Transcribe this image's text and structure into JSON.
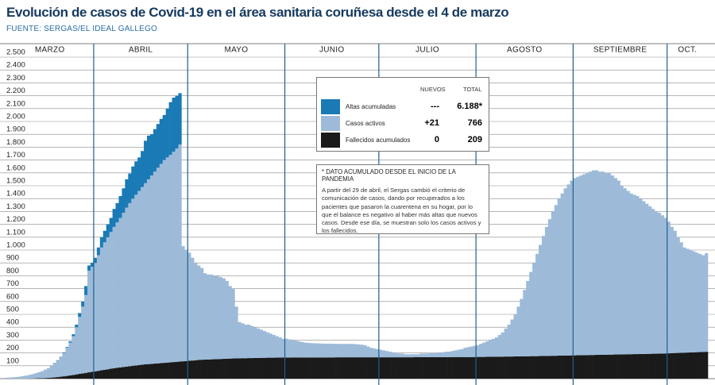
{
  "chart_data": {
    "type": "stacked_bar",
    "title": "Evolución de casos de Covid-19 en el área sanitaria coruñesa desde el 4 de marzo",
    "source": "FUENTE: SERGAS/EL IDEAL GALLEGO",
    "months": [
      "MARZO",
      "ABRIL",
      "MAYO",
      "JUNIO",
      "JULIO",
      "AGOSTO",
      "SEPTIEMBRE",
      "OCT."
    ],
    "ylim": [
      0,
      2500
    ],
    "yticks": [
      100,
      200,
      300,
      400,
      500,
      600,
      700,
      800,
      900,
      {
        "value": 1000,
        "label": "1.000"
      },
      {
        "value": 1100,
        "label": "1.100"
      },
      {
        "value": 1200,
        "label": "1.200"
      },
      {
        "value": 1300,
        "label": "1.300"
      },
      {
        "value": 1400,
        "label": "1.400"
      },
      {
        "value": 1500,
        "label": "1.500"
      },
      {
        "value": 1600,
        "label": "1.600"
      },
      {
        "value": 1700,
        "label": "1.700"
      },
      {
        "value": 1800,
        "label": "1.800"
      },
      {
        "value": 1900,
        "label": "1.900"
      },
      {
        "value": 2000,
        "label": "2.000"
      },
      {
        "value": 2100,
        "label": "2.100"
      },
      {
        "value": 2200,
        "label": "2.200"
      },
      {
        "value": 2300,
        "label": "2.300"
      },
      {
        "value": 2400,
        "label": "2.400"
      },
      {
        "value": 2500,
        "label": "2.500"
      }
    ],
    "grid": true,
    "legend": {
      "headers": [
        "NUEVOS",
        "TOTAL"
      ],
      "rows": [
        [
          "---",
          "6.188*"
        ],
        [
          "+21",
          "766"
        ],
        [
          "0",
          "209"
        ]
      ]
    },
    "note": {
      "title": "* DATO ACUMULADO DESDE EL INICIO DE LA PANDEMIA",
      "text": "A partir del 29 de abril, el Sergas cambió el criterio de comunicación de casos, dando por recuperados a los pacientes que pasaron la cuarentena en su hogar, por lo que el balance es negativo al haber más altas que nuevos casos. Desde ese día, se muestran solo los casos activos y los fallecidos."
    },
    "series": [
      {
        "name": "Altas acumuladas",
        "color": "#1a7ab5",
        "values": [
          0,
          0,
          0,
          0,
          0,
          0,
          0,
          0,
          0,
          0,
          0,
          0,
          1,
          1,
          2,
          2,
          3,
          4,
          5,
          6,
          10,
          15,
          20,
          30,
          40,
          70,
          40,
          30,
          40,
          60,
          80,
          90,
          100,
          110,
          140,
          150,
          170,
          190,
          220,
          230,
          250,
          260,
          260,
          280,
          330,
          340,
          320,
          330,
          340,
          350,
          350,
          380,
          410,
          420,
          410,
          400,
          null,
          null,
          null,
          null,
          null,
          null,
          null,
          null,
          null,
          null,
          null,
          null,
          null,
          null,
          null,
          null,
          null,
          null,
          null,
          null,
          null,
          null,
          null,
          null,
          null,
          null,
          null,
          null,
          null,
          null,
          null,
          null,
          null,
          null,
          null,
          null,
          null,
          null,
          null,
          null,
          null,
          null,
          null,
          null,
          null,
          null,
          null,
          null,
          null,
          null,
          null,
          null,
          null,
          null,
          null,
          null,
          null,
          null,
          null,
          null,
          null,
          null,
          null,
          null,
          null,
          null,
          null,
          null,
          null,
          null,
          null,
          null,
          null,
          null,
          null,
          null,
          null,
          null,
          null,
          null,
          null,
          null,
          null,
          null,
          null,
          null,
          null,
          null,
          null,
          null,
          null,
          null,
          null,
          null,
          null,
          null,
          null,
          null,
          null,
          null,
          null,
          null,
          null,
          null,
          null,
          null,
          null,
          null,
          null,
          null,
          null,
          null,
          null,
          null,
          null,
          null,
          null,
          null,
          null,
          null,
          null,
          null,
          null,
          null,
          null,
          null,
          null,
          null,
          null,
          null,
          null,
          null,
          null,
          null,
          null,
          null,
          null,
          null,
          null,
          null,
          null,
          null,
          null,
          null,
          null,
          null,
          null,
          null,
          null,
          null,
          null,
          null,
          null,
          null,
          null,
          null,
          null,
          null,
          null,
          null,
          null,
          null,
          null,
          null,
          null,
          null,
          null,
          null
        ]
      },
      {
        "name": "Casos activos",
        "color": "#9dbbd9",
        "values": [
          8,
          9,
          11,
          13,
          16,
          20,
          24,
          28,
          34,
          40,
          47,
          54,
          63,
          74,
          87,
          110,
          128,
          150,
          182,
          219,
          255,
          301,
          367,
          443,
          519,
          605,
          791,
          817,
          843,
          899,
          955,
          991,
          1027,
          1063,
          1099,
          1130,
          1162,
          1199,
          1236,
          1268,
          1300,
          1327,
          1354,
          1381,
          1409,
          1437,
          1465,
          1493,
          1521,
          1549,
          1577,
          1595,
          1613,
          1636,
          1659,
          1687,
          895,
          863,
          841,
          799,
          757,
          735,
          713,
          672,
          661,
          660,
          649,
          648,
          637,
          626,
          605,
          564,
          543,
          402,
          282,
          271,
          261,
          260,
          250,
          239,
          229,
          218,
          208,
          197,
          187,
          177,
          166,
          156,
          146,
          146,
          141,
          135,
          130,
          125,
          120,
          115,
          113,
          111,
          110,
          109,
          108,
          107,
          107,
          107,
          106,
          105,
          104,
          104,
          104,
          104,
          104,
          102,
          100,
          98,
          94,
          84,
          74,
          69,
          64,
          59,
          54,
          49,
          44,
          39,
          34,
          29,
          29,
          24,
          24,
          24,
          23,
          23,
          28,
          28,
          28,
          33,
          33,
          33,
          38,
          38,
          43,
          43,
          47,
          52,
          57,
          62,
          72,
          77,
          82,
          87,
          91,
          101,
          111,
          120,
          130,
          140,
          149,
          169,
          189,
          218,
          248,
          288,
          327,
          387,
          447,
          516,
          586,
          655,
          725,
          795,
          864,
          934,
          1003,
          1063,
          1122,
          1172,
          1221,
          1261,
          1300,
          1330,
          1359,
          1379,
          1388,
          1398,
          1407,
          1417,
          1426,
          1436,
          1435,
          1425,
          1424,
          1414,
          1413,
          1393,
          1372,
          1352,
          1311,
          1291,
          1270,
          1250,
          1239,
          1229,
          1208,
          1188,
          1167,
          1147,
          1126,
          1106,
          1095,
          1075,
          1054,
          1023,
          982,
          951,
          900,
          859,
          818,
          807,
          796,
          785,
          774,
          763,
          752,
          766
        ]
      },
      {
        "name": "Fallecidos acumulados",
        "color": "#1a1a1a",
        "values": [
          0,
          0,
          0,
          0,
          0,
          0,
          0,
          1,
          1,
          2,
          3,
          4,
          5,
          6,
          8,
          10,
          12,
          15,
          18,
          21,
          25,
          29,
          33,
          37,
          41,
          45,
          49,
          53,
          57,
          61,
          65,
          69,
          73,
          77,
          81,
          85,
          88,
          91,
          94,
          97,
          100,
          103,
          106,
          109,
          111,
          113,
          115,
          117,
          119,
          121,
          123,
          125,
          127,
          129,
          131,
          133,
          135,
          137,
          139,
          141,
          143,
          145,
          147,
          148,
          149,
          150,
          151,
          152,
          153,
          154,
          155,
          156,
          157,
          158,
          158,
          159,
          159,
          160,
          160,
          161,
          161,
          162,
          162,
          163,
          163,
          163,
          164,
          164,
          164,
          164,
          164,
          165,
          165,
          165,
          165,
          165,
          165,
          165,
          165,
          165,
          165,
          165,
          165,
          165,
          165,
          166,
          166,
          166,
          166,
          166,
          166,
          166,
          166,
          166,
          166,
          166,
          166,
          166,
          166,
          166,
          166,
          166,
          166,
          166,
          166,
          166,
          166,
          166,
          166,
          166,
          167,
          167,
          167,
          167,
          167,
          167,
          167,
          167,
          167,
          167,
          167,
          167,
          168,
          168,
          168,
          168,
          168,
          168,
          168,
          168,
          169,
          169,
          169,
          170,
          170,
          170,
          171,
          171,
          171,
          172,
          172,
          172,
          173,
          173,
          173,
          174,
          174,
          175,
          175,
          175,
          176,
          176,
          177,
          177,
          178,
          178,
          179,
          179,
          180,
          180,
          181,
          181,
          182,
          182,
          183,
          183,
          184,
          184,
          185,
          185,
          186,
          186,
          187,
          187,
          188,
          188,
          189,
          189,
          190,
          190,
          191,
          191,
          192,
          192,
          193,
          193,
          194,
          194,
          195,
          195,
          196,
          197,
          198,
          199,
          200,
          201,
          202,
          203,
          204,
          205,
          206,
          207,
          208,
          209
        ]
      }
    ]
  }
}
